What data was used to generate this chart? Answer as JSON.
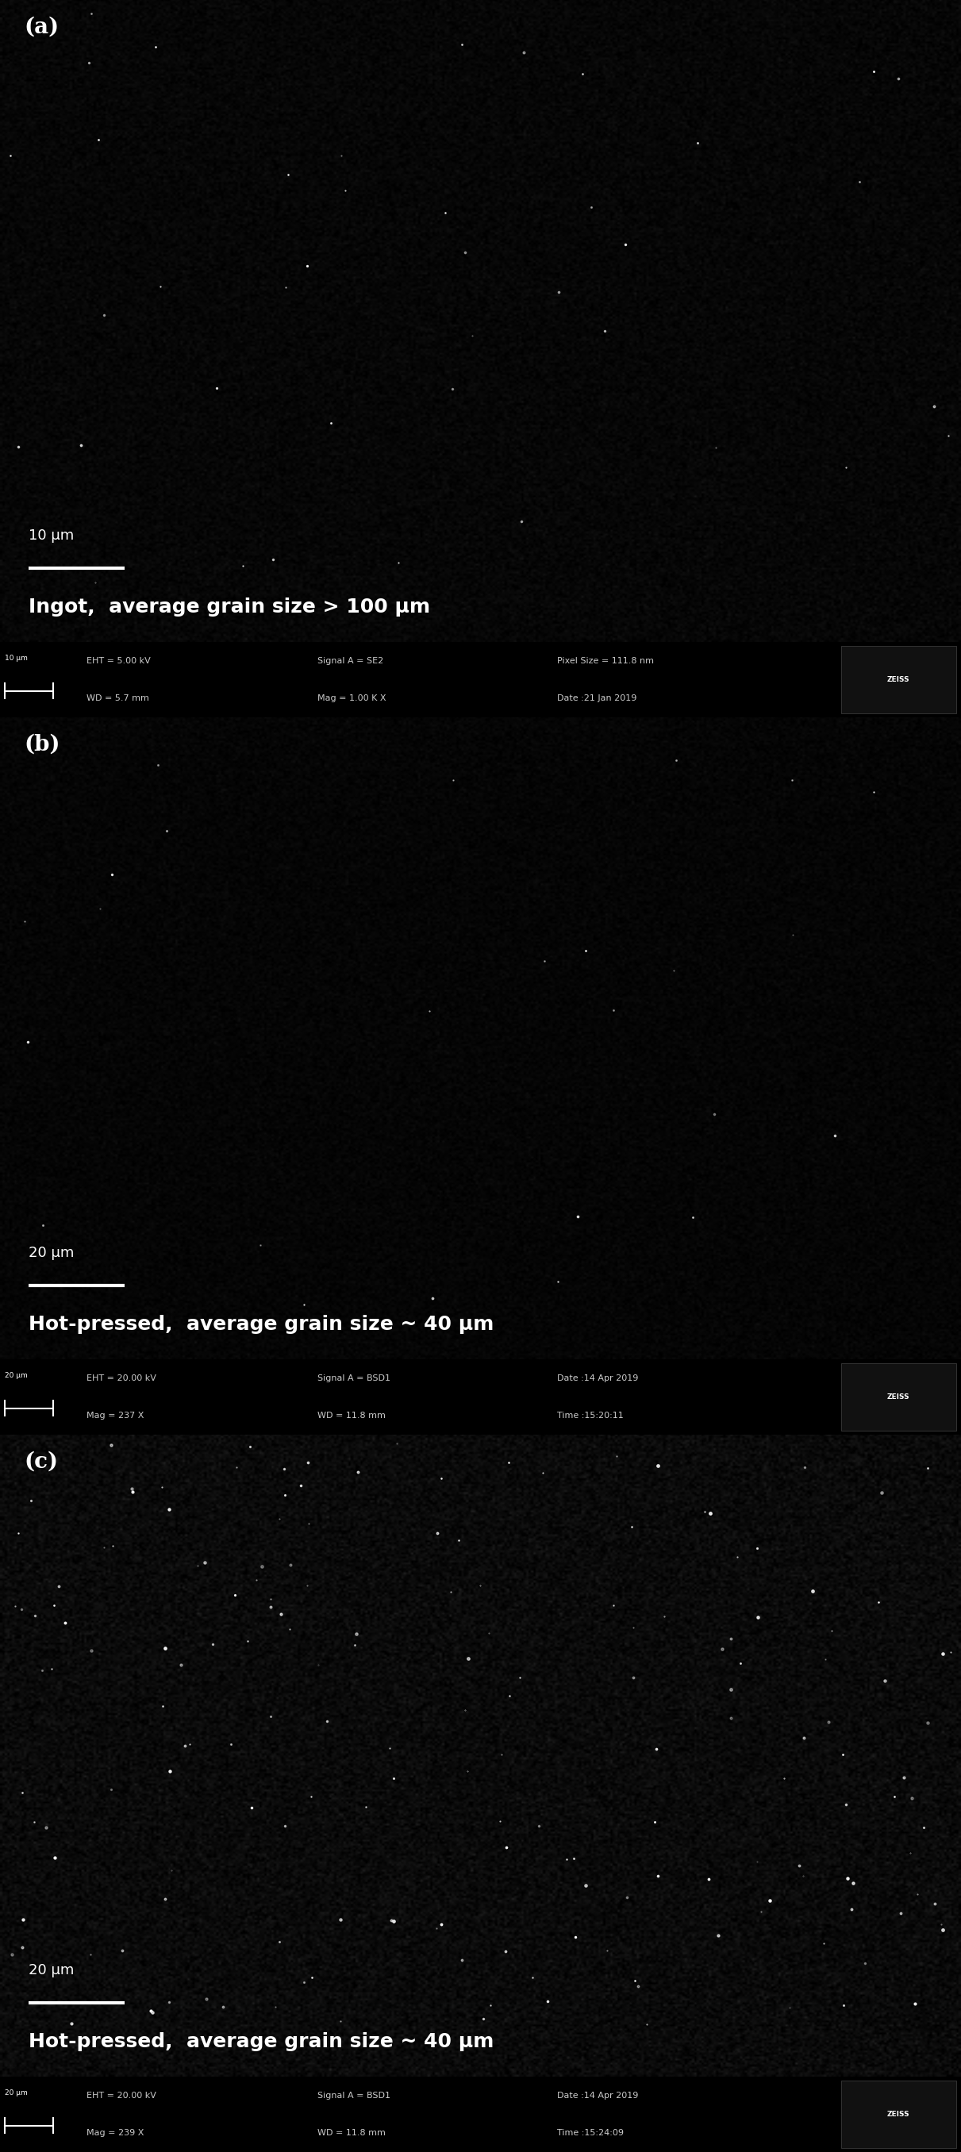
{
  "panels": [
    {
      "label": "(a)",
      "scale_bar_text": "10 μm",
      "caption": "Ingot,  average grain size > 100 μm",
      "meta_left": "10 μm",
      "meta_col1_l1": "EHT = 5.00 kV",
      "meta_col1_l2": "WD = 5.7 mm",
      "meta_col2_l1": "Signal A = SE2",
      "meta_col2_l2": "Mag = 1.00 K X",
      "meta_col3_l1": "Pixel Size = 111.8 nm",
      "meta_col3_l2": "Date :21 Jan 2019",
      "brightness": 0.025,
      "noise_std": 0.015,
      "n_spots": 40,
      "spot_size_min": 0.5,
      "spot_size_max": 4.0,
      "spot_alpha_min": 0.4,
      "spot_alpha_max": 0.9
    },
    {
      "label": "(b)",
      "scale_bar_text": "20 μm",
      "caption": "Hot-pressed,  average grain size ~ 40 μm",
      "meta_left": "20 μm",
      "meta_col1_l1": "EHT = 20.00 kV",
      "meta_col1_l2": "Mag = 237 X",
      "meta_col2_l1": "Signal A = BSD1",
      "meta_col2_l2": "WD = 11.8 mm",
      "meta_col3_l1": "Date :14 Apr 2019",
      "meta_col3_l2": "Time :15:20:11",
      "brightness": 0.02,
      "noise_std": 0.012,
      "n_spots": 25,
      "spot_size_min": 0.5,
      "spot_size_max": 3.5,
      "spot_alpha_min": 0.3,
      "spot_alpha_max": 0.85
    },
    {
      "label": "(c)",
      "scale_bar_text": "20 μm",
      "caption": "Hot-pressed,  average grain size ~ 40 μm",
      "meta_left": "20 μm",
      "meta_col1_l1": "EHT = 20.00 kV",
      "meta_col1_l2": "Mag = 239 X",
      "meta_col2_l1": "Signal A = BSD1",
      "meta_col2_l2": "WD = 11.8 mm",
      "meta_col3_l1": "Date :14 Apr 2019",
      "meta_col3_l2": "Time :15:24:09",
      "brightness": 0.04,
      "noise_std": 0.025,
      "n_spots": 180,
      "spot_size_min": 0.5,
      "spot_size_max": 5.0,
      "spot_alpha_min": 0.3,
      "spot_alpha_max": 0.95
    }
  ],
  "bg_color": "#000000",
  "label_color": "#ffffff",
  "meta_bg": "#1c1c1c",
  "label_fontsize": 20,
  "caption_fontsize": 18,
  "meta_fontsize": 8,
  "scale_fontsize": 13
}
